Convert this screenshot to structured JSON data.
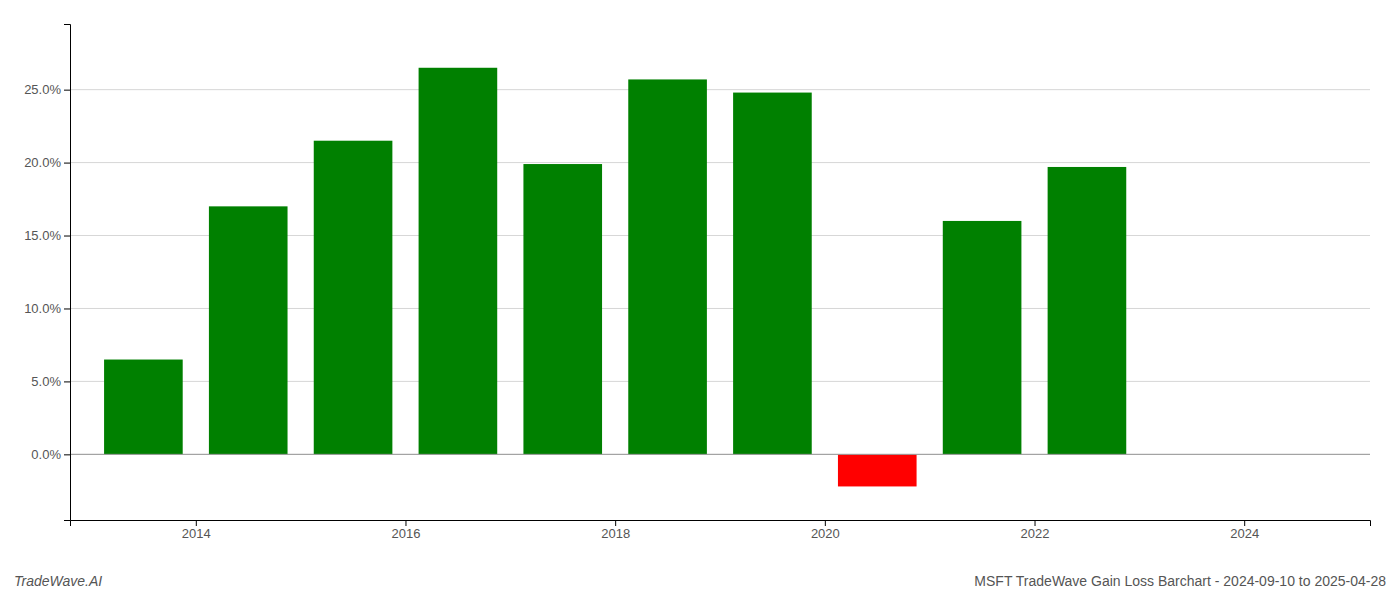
{
  "chart_data": {
    "type": "bar",
    "title": "MSFT TradeWave Gain Loss Barchart - 2024-09-10 to 2025-04-28",
    "annotations": [
      "TradeWave.AI"
    ],
    "x": [
      2013.5,
      2014.5,
      2015.5,
      2016.5,
      2017.5,
      2018.5,
      2019.5,
      2020.5,
      2021.5,
      2022.5
    ],
    "values": [
      0.065,
      0.17,
      0.215,
      0.265,
      0.199,
      0.257,
      0.248,
      -0.022,
      0.16,
      0.197
    ],
    "colors": [
      "#008000",
      "#008000",
      "#008000",
      "#008000",
      "#008000",
      "#008000",
      "#008000",
      "#ff0000",
      "#008000",
      "#008000"
    ],
    "xlim": [
      2012.8,
      2025.2
    ],
    "ylim": [
      -0.045,
      0.295
    ],
    "xticks": [
      2014,
      2016,
      2018,
      2020,
      2022,
      2024
    ],
    "yticks": [
      {
        "value": 0.0,
        "label": "0.0%"
      },
      {
        "value": 0.05,
        "label": "5.0%"
      },
      {
        "value": 0.1,
        "label": "10.0%"
      },
      {
        "value": 0.15,
        "label": "15.0%"
      },
      {
        "value": 0.2,
        "label": "20.0%"
      },
      {
        "value": 0.25,
        "label": "25.0%"
      }
    ],
    "grid": true
  }
}
